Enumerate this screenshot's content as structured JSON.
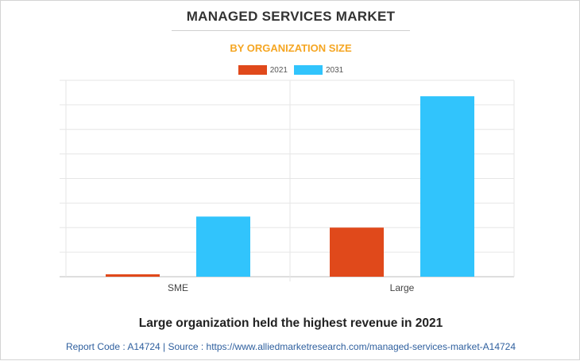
{
  "chart_data": {
    "type": "bar",
    "title": "MANAGED SERVICES MARKET",
    "subtitle": "BY ORGANIZATION SIZE",
    "categories": [
      "SME",
      "Large"
    ],
    "series": [
      {
        "name": "2021",
        "values": [
          0.1,
          2.0
        ],
        "color": "#e0491b"
      },
      {
        "name": "2031",
        "values": [
          2.45,
          7.35
        ],
        "color": "#31c4fc"
      }
    ],
    "ylim": [
      0,
      8
    ],
    "y_gridlines": 8,
    "y_tick_labels_visible": false,
    "xlabel": "",
    "ylabel": "",
    "grid": true,
    "legend_position": "top-center"
  },
  "footer": {
    "headline": "Large organization held the highest revenue in 2021",
    "source": "Report Code : A14724  |  Source : https://www.alliedmarketresearch.com/managed-services-market-A14724"
  },
  "colors": {
    "title": "#333333",
    "subtitle": "#f5a623",
    "source_link": "#2e5f9e"
  }
}
